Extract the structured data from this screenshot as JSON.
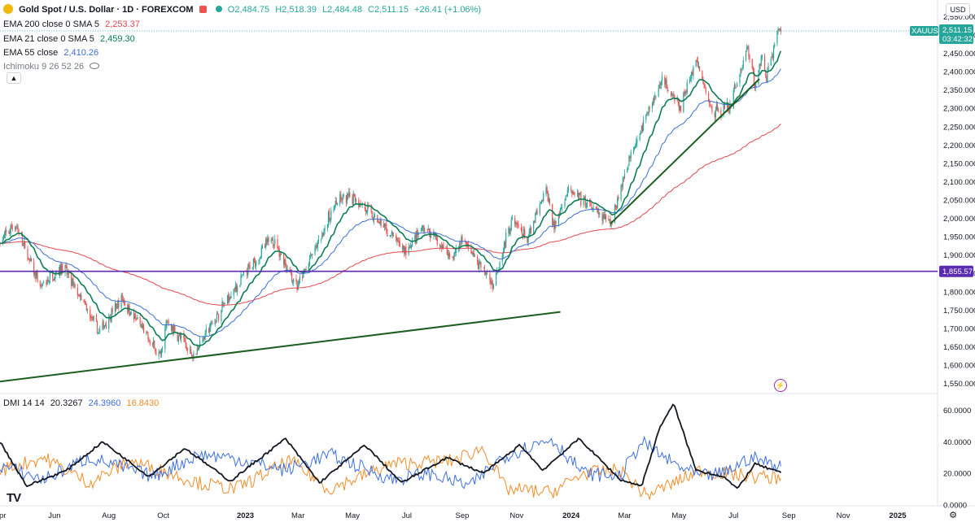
{
  "header": {
    "symbol_title": "Gold Spot / U.S. Dollar · 1D · FOREXCOM",
    "ohlc": {
      "open": "O2,484.75",
      "high": "H2,518.39",
      "low": "L2,484.48",
      "close": "C2,511.15",
      "change": "+26.41 (+1.06%)"
    },
    "ema200": {
      "label": "EMA 200 close 0 SMA 5",
      "value": "2,253.37"
    },
    "ema21": {
      "label": "EMA 21 close 0 SMA 5",
      "value": "2,459.30"
    },
    "ema55": {
      "label": "EMA 55 close",
      "value": "2,410.26"
    },
    "ichimoku": {
      "label": "Ichimoku 9 26 52 26"
    }
  },
  "currency_button": "USD",
  "price_label": {
    "symbol": "XAUUSD",
    "price": "2,511.15",
    "countdown": "03:42:32"
  },
  "hline_label": "1,855.57",
  "dmi_header": {
    "label": "DMI 14 14",
    "adx": "20.3267",
    "plus_di": "24.3960",
    "minus_di": "16.8430"
  },
  "logo_text": "TV",
  "colors": {
    "up": "#26a69a",
    "down": "#ef5350",
    "ema21": "#0b7e53",
    "ema55": "#3a6fd8",
    "ema200": "#e2484e",
    "hline": "#5b2bb0",
    "trend": "#1b5e20",
    "plus_di": "#3d6fe0",
    "minus_di": "#f28c28",
    "adx": "#131722"
  },
  "chart_data": [
    {
      "type": "candlestick",
      "title": "Gold Spot / U.S. Dollar · 1D · FOREXCOM",
      "x_ticks": [
        "Apr",
        "Jun",
        "Aug",
        "Oct",
        "2023",
        "Mar",
        "May",
        "Jul",
        "Sep",
        "Nov",
        "2024",
        "Mar",
        "May",
        "Jul",
        "Sep",
        "Nov",
        "2025"
      ],
      "y_ticks": [
        1550,
        1600,
        1650,
        1700,
        1750,
        1800,
        1850,
        1900,
        1950,
        2000,
        2050,
        2100,
        2150,
        2200,
        2250,
        2300,
        2350,
        2400,
        2450,
        2500,
        2550
      ],
      "ylim": [
        1530,
        2560
      ],
      "price_anchors": [
        [
          "2022-04-01",
          1935
        ],
        [
          "2022-04-18",
          1985
        ],
        [
          "2022-05-16",
          1810
        ],
        [
          "2022-06-10",
          1870
        ],
        [
          "2022-07-21",
          1690
        ],
        [
          "2022-08-16",
          1780
        ],
        [
          "2022-09-28",
          1620
        ],
        [
          "2022-10-05",
          1720
        ],
        [
          "2022-11-03",
          1630
        ],
        [
          "2022-12-15",
          1790
        ],
        [
          "2023-01-31",
          1950
        ],
        [
          "2023-02-28",
          1810
        ],
        [
          "2023-04-13",
          2045
        ],
        [
          "2023-05-03",
          2060
        ],
        [
          "2023-06-30",
          1910
        ],
        [
          "2023-07-20",
          1975
        ],
        [
          "2023-08-21",
          1895
        ],
        [
          "2023-09-01",
          1945
        ],
        [
          "2023-10-05",
          1820
        ],
        [
          "2023-10-27",
          2000
        ],
        [
          "2023-11-13",
          1940
        ],
        [
          "2023-12-04",
          2080
        ],
        [
          "2023-12-13",
          1975
        ],
        [
          "2023-12-28",
          2080
        ],
        [
          "2024-02-14",
          1985
        ],
        [
          "2024-03-08",
          2180
        ],
        [
          "2024-04-12",
          2380
        ],
        [
          "2024-05-02",
          2300
        ],
        [
          "2024-05-20",
          2430
        ],
        [
          "2024-06-07",
          2290
        ],
        [
          "2024-06-26",
          2300
        ],
        [
          "2024-07-17",
          2470
        ],
        [
          "2024-07-25",
          2360
        ],
        [
          "2024-08-02",
          2440
        ],
        [
          "2024-08-07",
          2390
        ],
        [
          "2024-08-20",
          2510
        ],
        [
          "2024-08-23",
          2511.15
        ]
      ],
      "ema21_last": 2459.3,
      "ema55_last": 2410.26,
      "ema200_last": 2253.37,
      "horizontal_line": 1855.57,
      "trendlines": [
        {
          "from": [
            "2022-04-01",
            1555
          ],
          "to": [
            "2023-12-20",
            1745
          ]
        },
        {
          "from": [
            "2024-02-14",
            1985
          ],
          "to": [
            "2024-07-30",
            2380
          ]
        }
      ]
    },
    {
      "type": "line",
      "title": "DMI 14 14",
      "y_ticks": [
        0,
        20,
        40,
        60
      ],
      "ylim": [
        -8,
        68
      ],
      "series": [
        {
          "name": "ADX",
          "last": 20.3267,
          "anchors": [
            [
              "2022-04-01",
              40
            ],
            [
              "2022-05-01",
              12
            ],
            [
              "2022-06-15",
              22
            ],
            [
              "2022-07-25",
              40
            ],
            [
              "2022-09-15",
              18
            ],
            [
              "2022-10-25",
              36
            ],
            [
              "2022-12-15",
              15
            ],
            [
              "2023-02-15",
              42
            ],
            [
              "2023-03-25",
              14
            ],
            [
              "2023-05-15",
              38
            ],
            [
              "2023-06-25",
              14
            ],
            [
              "2023-08-15",
              30
            ],
            [
              "2023-09-25",
              20
            ],
            [
              "2023-11-05",
              38
            ],
            [
              "2023-11-30",
              22
            ],
            [
              "2024-01-10",
              42
            ],
            [
              "2024-02-25",
              16
            ],
            [
              "2024-03-20",
              12
            ],
            [
              "2024-04-10",
              50
            ],
            [
              "2024-04-25",
              64
            ],
            [
              "2024-05-20",
              22
            ],
            [
              "2024-06-20",
              18
            ],
            [
              "2024-07-05",
              10
            ],
            [
              "2024-07-25",
              26
            ],
            [
              "2024-08-23",
              20.3267
            ]
          ]
        },
        {
          "name": "+DI",
          "last": 24.396,
          "anchors": [
            [
              "2022-04-01",
              25
            ],
            [
              "2022-05-20",
              16
            ],
            [
              "2022-07-10",
              30
            ],
            [
              "2022-09-20",
              18
            ],
            [
              "2022-11-10",
              32
            ],
            [
              "2022-12-15",
              30
            ],
            [
              "2023-02-15",
              22
            ],
            [
              "2023-04-05",
              32
            ],
            [
              "2023-06-15",
              16
            ],
            [
              "2023-07-25",
              20
            ],
            [
              "2023-09-10",
              12
            ],
            [
              "2023-10-15",
              30
            ],
            [
              "2023-11-10",
              36
            ],
            [
              "2023-12-10",
              42
            ],
            [
              "2024-01-15",
              20
            ],
            [
              "2024-02-25",
              18
            ],
            [
              "2024-03-20",
              40
            ],
            [
              "2024-04-25",
              26
            ],
            [
              "2024-05-25",
              18
            ],
            [
              "2024-06-20",
              20
            ],
            [
              "2024-07-20",
              30
            ],
            [
              "2024-08-23",
              24.396
            ]
          ]
        },
        {
          "name": "-DI",
          "last": 16.843,
          "anchors": [
            [
              "2022-04-01",
              22
            ],
            [
              "2022-05-20",
              30
            ],
            [
              "2022-07-10",
              14
            ],
            [
              "2022-08-25",
              28
            ],
            [
              "2022-11-10",
              14
            ],
            [
              "2022-12-20",
              10
            ],
            [
              "2023-02-20",
              28
            ],
            [
              "2023-04-05",
              10
            ],
            [
              "2023-06-15",
              26
            ],
            [
              "2023-08-20",
              28
            ],
            [
              "2023-09-25",
              36
            ],
            [
              "2023-10-20",
              10
            ],
            [
              "2023-12-10",
              8
            ],
            [
              "2024-01-15",
              20
            ],
            [
              "2024-02-25",
              22
            ],
            [
              "2024-03-25",
              6
            ],
            [
              "2024-04-25",
              14
            ],
            [
              "2024-05-25",
              22
            ],
            [
              "2024-06-20",
              20
            ],
            [
              "2024-07-25",
              18
            ],
            [
              "2024-08-23",
              16.843
            ]
          ]
        }
      ]
    }
  ]
}
